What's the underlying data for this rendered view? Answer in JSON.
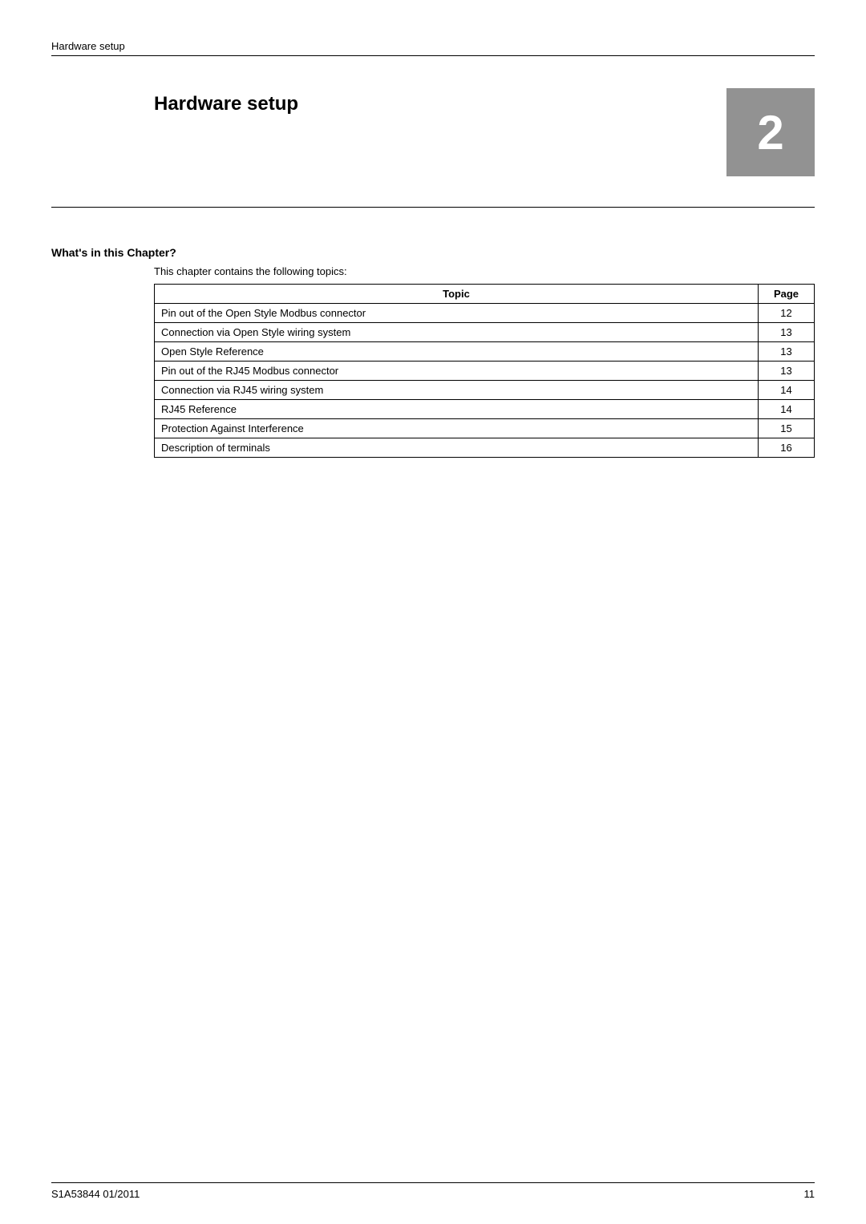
{
  "header": {
    "running_title": "Hardware setup"
  },
  "chapter": {
    "title": "Hardware setup",
    "number": "2",
    "number_box_bg": "#929292",
    "number_box_fg": "#ffffff"
  },
  "section": {
    "heading": "What's in this Chapter?",
    "intro": "This chapter contains the following topics:"
  },
  "table": {
    "columns": [
      "Topic",
      "Page"
    ],
    "rows": [
      [
        "Pin out of the Open Style Modbus connector",
        "12"
      ],
      [
        "Connection via Open Style wiring system",
        "13"
      ],
      [
        "Open Style Reference",
        "13"
      ],
      [
        "Pin out of the RJ45 Modbus connector",
        "13"
      ],
      [
        "Connection via RJ45 wiring system",
        "14"
      ],
      [
        "RJ45 Reference",
        "14"
      ],
      [
        "Protection Against Interference",
        "15"
      ],
      [
        "Description of terminals",
        "16"
      ]
    ],
    "border_color": "#000000"
  },
  "footer": {
    "doc_ref": "S1A53844 01/2011",
    "page_number": "11"
  }
}
